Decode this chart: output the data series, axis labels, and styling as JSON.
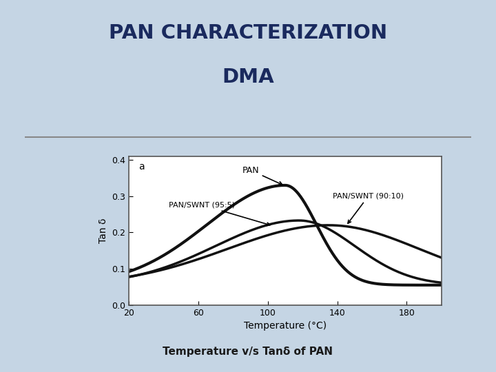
{
  "title_line1": "PAN CHARACTERIZATION",
  "title_line2": "DMA",
  "subtitle": "Temperature v/s Tanδ of PAN",
  "xlabel": "Temperature (°C)",
  "ylabel": "Tan δ",
  "xlim": [
    20,
    200
  ],
  "ylim": [
    0,
    0.41
  ],
  "xticks": [
    20,
    60,
    100,
    140,
    180
  ],
  "yticks": [
    0,
    0.1,
    0.2,
    0.3,
    0.4
  ],
  "bg_color": "#c5d5e4",
  "panel_bg": "#eef2f5",
  "plot_bg": "#ffffff",
  "title_color": "#1a2a5e",
  "subtitle_color": "#1a1a1a",
  "line_color": "#111111",
  "rule_color": "#888888",
  "label_a": "a",
  "label_pan": "PAN",
  "label_95": "PAN/SWNT (95:5)",
  "label_90": "PAN/SWNT (90:10)"
}
